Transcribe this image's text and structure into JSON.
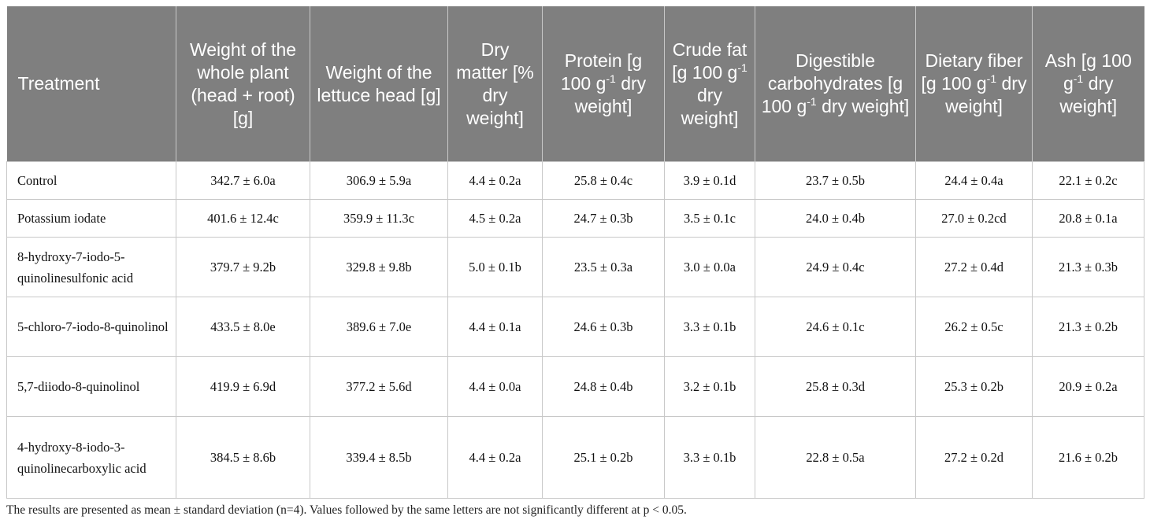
{
  "table": {
    "header": [
      [
        {
          "text": "Treatment"
        }
      ],
      [
        {
          "text": "Weight of the whole plant (head + root) [g]"
        }
      ],
      [
        {
          "text": "Weight of the lettuce head [g]"
        }
      ],
      [
        {
          "text": "Dry matter [% dry weight]"
        }
      ],
      [
        {
          "text": "Protein [g 100 g"
        },
        {
          "sup": "-1"
        },
        {
          "text": " dry weight]"
        }
      ],
      [
        {
          "text": "Crude fat [g 100 g"
        },
        {
          "sup": "-1"
        },
        {
          "text": " dry weight]"
        }
      ],
      [
        {
          "text": "Digestible carbohydrates [g 100 g"
        },
        {
          "sup": "-1"
        },
        {
          "text": " dry weight]"
        }
      ],
      [
        {
          "text": "Dietary fiber [g 100 g"
        },
        {
          "sup": "-1"
        },
        {
          "text": " dry weight]"
        }
      ],
      [
        {
          "text": "Ash [g 100 g"
        },
        {
          "sup": "-1"
        },
        {
          "text": " dry weight]"
        }
      ]
    ],
    "rows": [
      [
        "Control",
        "342.7 ± 6.0a",
        "306.9 ± 5.9a",
        "4.4 ± 0.2a",
        "25.8 ± 0.4c",
        "3.9 ± 0.1d",
        "23.7 ± 0.5b",
        "24.4 ± 0.4a",
        "22.1 ± 0.2c"
      ],
      [
        "Potassium iodate",
        "401.6 ± 12.4c",
        "359.9 ± 11.3c",
        "4.5 ± 0.2a",
        "24.7 ± 0.3b",
        "3.5 ± 0.1c",
        "24.0 ± 0.4b",
        "27.0 ± 0.2cd",
        "20.8 ± 0.1a"
      ],
      [
        "8-hydroxy-7-iodo-5-quinolinesulfonic acid",
        "379.7 ± 9.2b",
        "329.8 ± 9.8b",
        "5.0 ± 0.1b",
        "23.5 ± 0.3a",
        "3.0 ± 0.0a",
        "24.9 ± 0.4c",
        "27.2 ± 0.4d",
        "21.3 ± 0.3b"
      ],
      [
        "5-chloro-7-iodo-8-quinolinol",
        "433.5 ± 8.0e",
        "389.6 ± 7.0e",
        "4.4 ± 0.1a",
        "24.6 ± 0.3b",
        "3.3 ± 0.1b",
        "24.6 ± 0.1c",
        "26.2 ± 0.5c",
        "21.3 ± 0.2b"
      ],
      [
        "5,7-diiodo-8-quinolinol",
        "419.9 ± 6.9d",
        "377.2 ± 5.6d",
        "4.4 ± 0.0a",
        "24.8 ± 0.4b",
        "3.2 ± 0.1b",
        "25.8 ± 0.3d",
        "25.3 ± 0.2b",
        "20.9 ± 0.2a"
      ],
      [
        "4-hydroxy-8-iodo-3-quinolinecarboxylic acid",
        "384.5 ± 8.6b",
        "339.4 ± 8.5b",
        "4.4 ± 0.2a",
        "25.1 ± 0.2b",
        "3.3 ± 0.1b",
        "22.8 ± 0.5a",
        "27.2 ± 0.2d",
        "21.6 ± 0.2b"
      ]
    ],
    "footnote": "The results are presented as mean ± standard deviation (n=4). Values followed by the same letters are not significantly different at p < 0.05."
  }
}
